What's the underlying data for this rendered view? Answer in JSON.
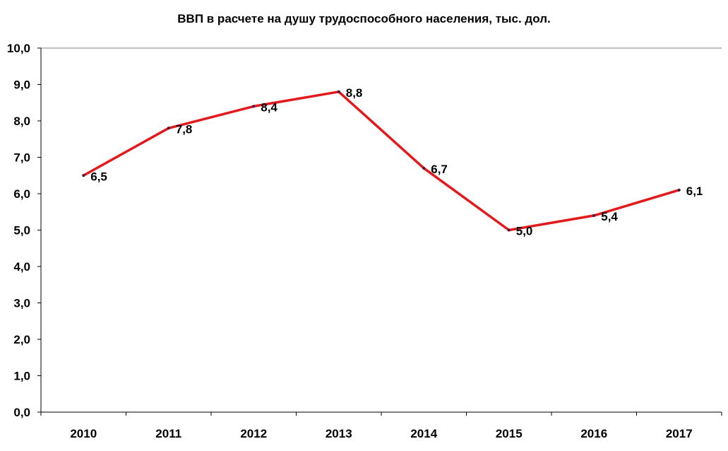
{
  "chart_data": {
    "type": "line",
    "title": "ВВП в расчете на душу трудоспособного населения, тыс. дол.",
    "xlabel": "",
    "ylabel": "",
    "categories": [
      "2010",
      "2011",
      "2012",
      "2013",
      "2014",
      "2015",
      "2016",
      "2017"
    ],
    "values": [
      6.5,
      7.8,
      8.4,
      8.8,
      6.7,
      5.0,
      5.4,
      6.1
    ],
    "data_labels": [
      "6,5",
      "7,8",
      "8,4",
      "8,8",
      "6,7",
      "5,0",
      "5,4",
      "6,1"
    ],
    "ylim": [
      0,
      10
    ],
    "yticks": [
      "0,0",
      "1,0",
      "2,0",
      "3,0",
      "4,0",
      "5,0",
      "6,0",
      "7,0",
      "8,0",
      "9,0",
      "10,0"
    ],
    "grid": false,
    "legend": "none",
    "line_color": "#e31a1c"
  }
}
